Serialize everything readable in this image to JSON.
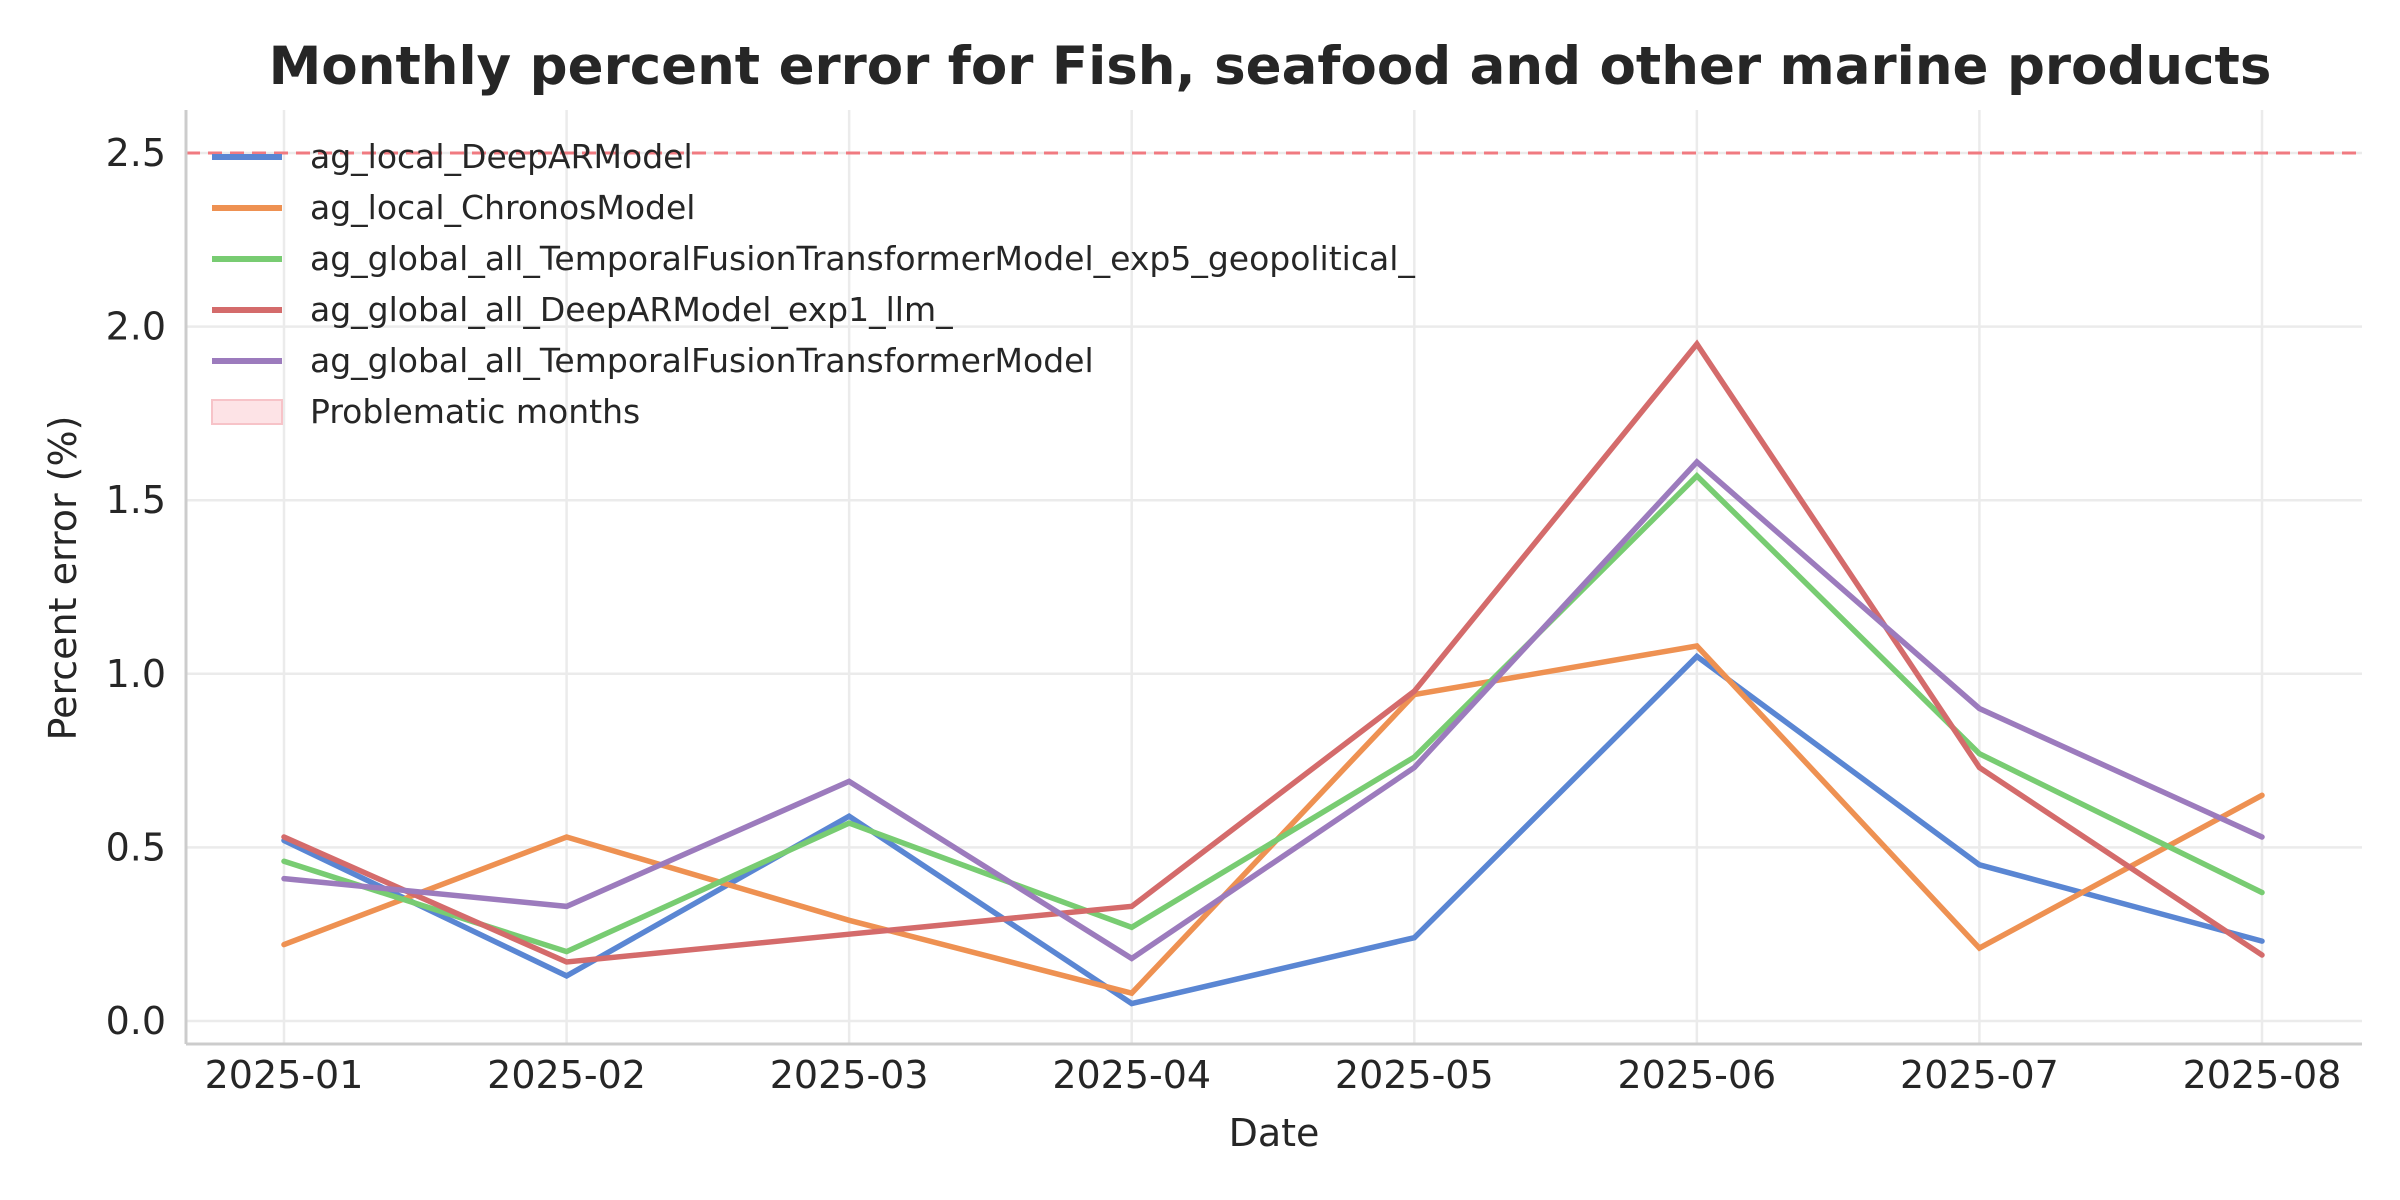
{
  "chart_data": {
    "type": "line",
    "title": "Monthly percent error for Fish, seafood and other marine products",
    "xlabel": "Date",
    "ylabel": "Percent error (%)",
    "x": [
      "2025-01",
      "2025-02",
      "2025-03",
      "2025-04",
      "2025-05",
      "2025-06",
      "2025-07",
      "2025-08"
    ],
    "ylim": [
      -0.07,
      2.62
    ],
    "yticks": [
      "0.0",
      "0.5",
      "1.0",
      "1.5",
      "2.0",
      "2.5"
    ],
    "grid": true,
    "legend_position": "top-left",
    "threshold": {
      "value": 2.5,
      "style": "dashed",
      "color": "#f07a80"
    },
    "series": [
      {
        "name": "ag_local_DeepARModel",
        "color": "#5a86d3",
        "values": [
          0.52,
          0.13,
          0.59,
          0.05,
          0.24,
          1.05,
          0.45,
          0.23
        ]
      },
      {
        "name": "ag_local_ChronosModel",
        "color": "#ee9152",
        "values": [
          0.22,
          0.53,
          0.29,
          0.08,
          0.94,
          1.08,
          0.21,
          0.65
        ]
      },
      {
        "name": "ag_global_all_TemporalFusionTransformerModel_exp5_geopolitical_",
        "color": "#78cc72",
        "values": [
          0.46,
          0.2,
          0.57,
          0.27,
          0.76,
          1.57,
          0.77,
          0.37
        ]
      },
      {
        "name": "ag_global_all_DeepARModel_exp1_llm_",
        "color": "#d46b6b",
        "values": [
          0.53,
          0.17,
          0.25,
          0.33,
          0.95,
          1.95,
          0.73,
          0.19
        ]
      },
      {
        "name": "ag_global_all_TemporalFusionTransformerModel",
        "color": "#9c7bbd",
        "values": [
          0.41,
          0.33,
          0.69,
          0.18,
          0.73,
          1.61,
          0.9,
          0.53
        ]
      }
    ],
    "legend_extra": {
      "name": "Problematic months",
      "color": "#fde3e6"
    }
  }
}
